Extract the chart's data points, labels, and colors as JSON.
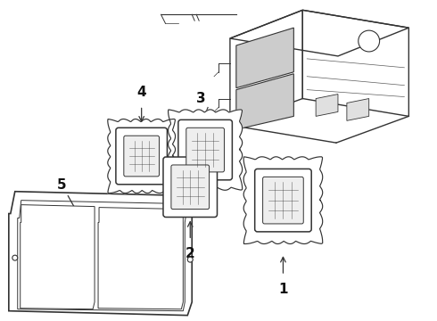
{
  "background_color": "#ffffff",
  "line_color": "#333333",
  "label_color": "#111111",
  "label_fontsize": 11,
  "label_fontweight": "bold",
  "figsize": [
    4.9,
    3.6
  ],
  "dpi": 100
}
